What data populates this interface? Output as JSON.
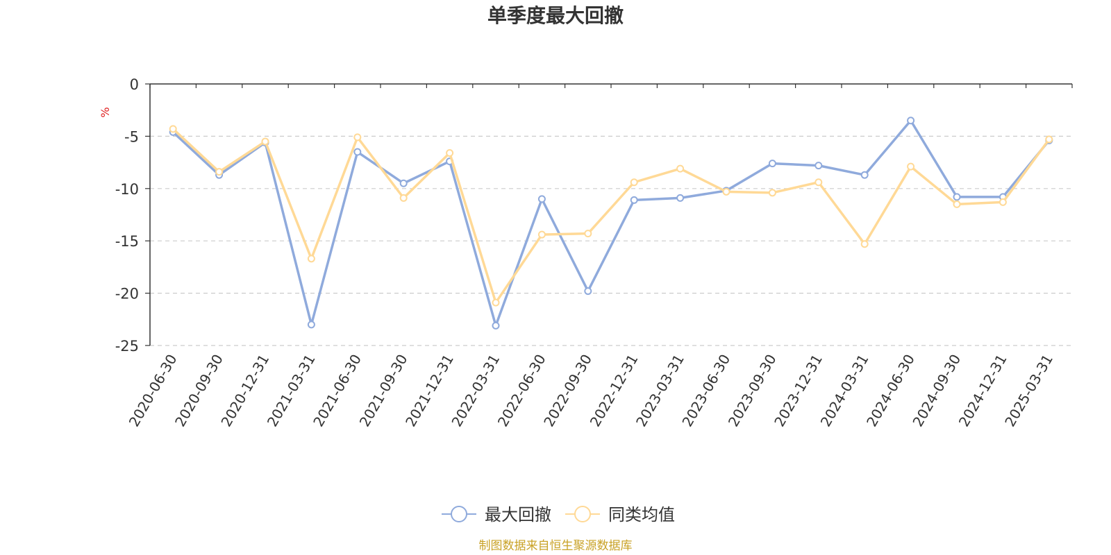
{
  "chart_data": {
    "type": "line",
    "title": "单季度最大回撤",
    "ylabel": "%",
    "xlabel": "",
    "ylim": [
      -25,
      0
    ],
    "yticks": [
      0,
      -5,
      -10,
      -15,
      -20,
      -25
    ],
    "grid": true,
    "legend_position": "bottom",
    "categories": [
      "2020-06-30",
      "2020-09-30",
      "2020-12-31",
      "2021-03-31",
      "2021-06-30",
      "2021-09-30",
      "2021-12-31",
      "2022-03-31",
      "2022-06-30",
      "2022-09-30",
      "2022-12-31",
      "2023-03-31",
      "2023-06-30",
      "2023-09-30",
      "2023-12-31",
      "2024-03-31",
      "2024-06-30",
      "2024-09-30",
      "2024-12-31",
      "2025-03-31"
    ],
    "series": [
      {
        "name": "最大回撤",
        "color": "#8faadc",
        "values": [
          -4.6,
          -8.7,
          -5.6,
          -23.0,
          -6.5,
          -9.5,
          -7.4,
          -23.1,
          -11.0,
          -19.8,
          -11.1,
          -10.9,
          -10.2,
          -7.6,
          -7.8,
          -8.7,
          -3.5,
          -10.8,
          -10.8,
          -5.4
        ]
      },
      {
        "name": "同类均值",
        "color": "#ffd996",
        "values": [
          -4.3,
          -8.4,
          -5.5,
          -16.7,
          -5.1,
          -10.9,
          -6.6,
          -20.9,
          -14.4,
          -14.3,
          -9.4,
          -8.1,
          -10.3,
          -10.4,
          -9.4,
          -15.3,
          -7.9,
          -11.5,
          -11.3,
          -5.3
        ]
      }
    ],
    "source_note": "制图数据来自恒生聚源数据库",
    "source_color": "#c9a227",
    "unit_color": "#e02020"
  }
}
